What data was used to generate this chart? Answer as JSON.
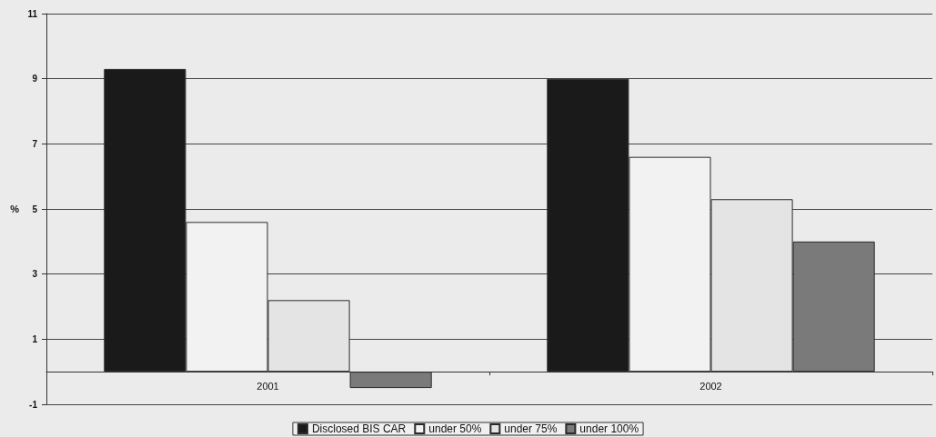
{
  "chart_data": {
    "type": "bar",
    "ylabel": "%",
    "categories": [
      "2001",
      "2002"
    ],
    "series": [
      {
        "name": "Disclosed BIS CAR",
        "color": "#1a1a1a",
        "values": [
          9.3,
          9.0
        ]
      },
      {
        "name": "under 50%",
        "color": "#f2f2f2",
        "values": [
          4.6,
          6.6
        ]
      },
      {
        "name": "under 75%",
        "color": "#e4e4e4",
        "values": [
          2.2,
          5.3
        ]
      },
      {
        "name": "under 100%",
        "color": "#7a7a7a",
        "values": [
          -0.5,
          4.0
        ]
      }
    ],
    "ylim": [
      -1,
      11
    ],
    "yticks": [
      -1,
      1,
      3,
      5,
      7,
      9,
      11
    ],
    "grid": "y",
    "legend": "bottom"
  }
}
